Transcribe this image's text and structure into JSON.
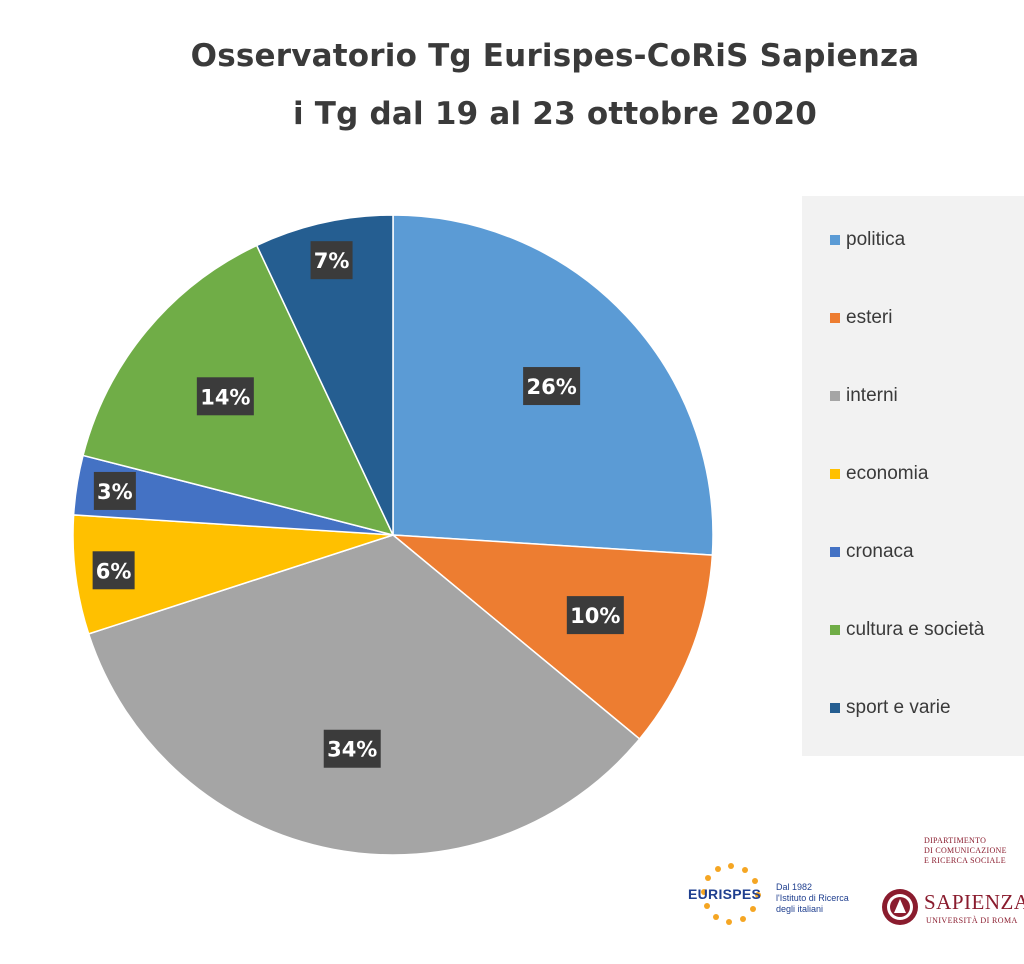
{
  "chart_data": {
    "type": "pie",
    "title_line1": "Osservatorio Tg Eurispes-CoRiS Sapienza",
    "title_line2": "i Tg dal 19 al 23 ottobre 2020",
    "slices": [
      {
        "label": "politica",
        "value": 26,
        "value_label": "26%",
        "color": "#5b9bd5"
      },
      {
        "label": "esteri",
        "value": 10,
        "value_label": "10%",
        "color": "#ed7d31"
      },
      {
        "label": "interni",
        "value": 34,
        "value_label": "34%",
        "color": "#a5a5a5"
      },
      {
        "label": "economia",
        "value": 6,
        "value_label": "6%",
        "color": "#ffc000"
      },
      {
        "label": "cronaca",
        "value": 3,
        "value_label": "3%",
        "color": "#4472c4"
      },
      {
        "label": "cultura e società",
        "value": 14,
        "value_label": "14%",
        "color": "#70ad47"
      },
      {
        "label": "sport e varie",
        "value": 7,
        "value_label": "7%",
        "color": "#255e91"
      }
    ],
    "legend_position": "right"
  },
  "logos": {
    "eurispes_word": "EURISPES",
    "eurispes_tagline": [
      "Dal 1982",
      "l'Istituto di Ricerca",
      "degli italiani"
    ],
    "sapienza_department": [
      "DIPARTIMENTO",
      "DI COMUNICAZIONE",
      "E RICERCA SOCIALE"
    ],
    "sapienza_name": "SAPIENZA",
    "sapienza_university": "UNIVERSITÀ DI ROMA"
  }
}
